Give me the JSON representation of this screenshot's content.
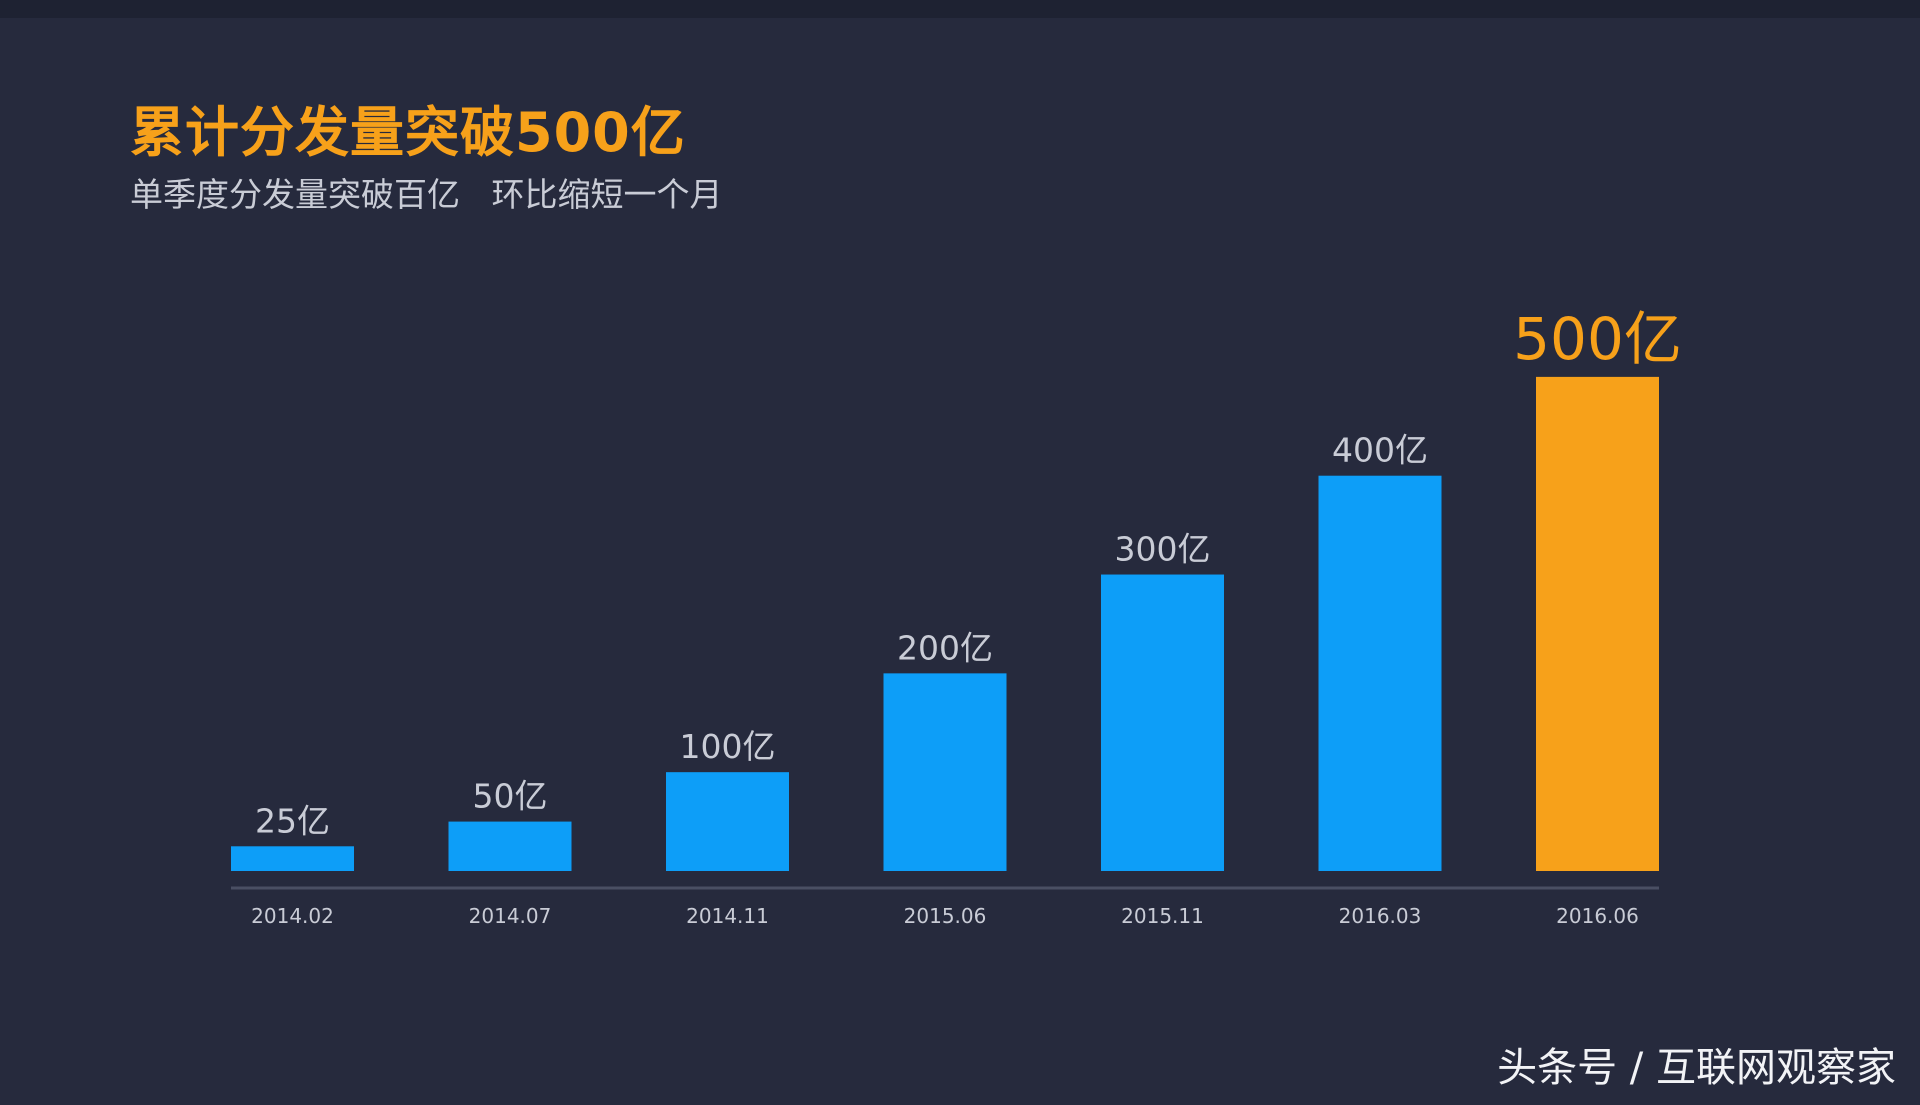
{
  "title": "累计分发量突破500亿",
  "subtitle": "单季度分发量突破百亿   环比缩短一个月",
  "watermark": "头条号 / 互联网观察家",
  "colors": {
    "background": "#262a3d",
    "bar": "#0d9ef8",
    "highlight": "#f7a11a",
    "axis": "#4a4f63",
    "label": "#c9ccd6"
  },
  "chart_data": {
    "type": "bar",
    "categories": [
      "2014.02",
      "2014.07",
      "2014.11",
      "2015.06",
      "2015.11",
      "2016.03",
      "2016.06"
    ],
    "values": [
      25,
      50,
      100,
      200,
      300,
      400,
      500
    ],
    "data_labels": [
      "25亿",
      "50亿",
      "100亿",
      "200亿",
      "300亿",
      "400亿",
      "500亿"
    ],
    "highlight_index": 6,
    "ylim": [
      0,
      510
    ],
    "grid": false,
    "legend": "none",
    "xlabel": "",
    "ylabel": ""
  }
}
